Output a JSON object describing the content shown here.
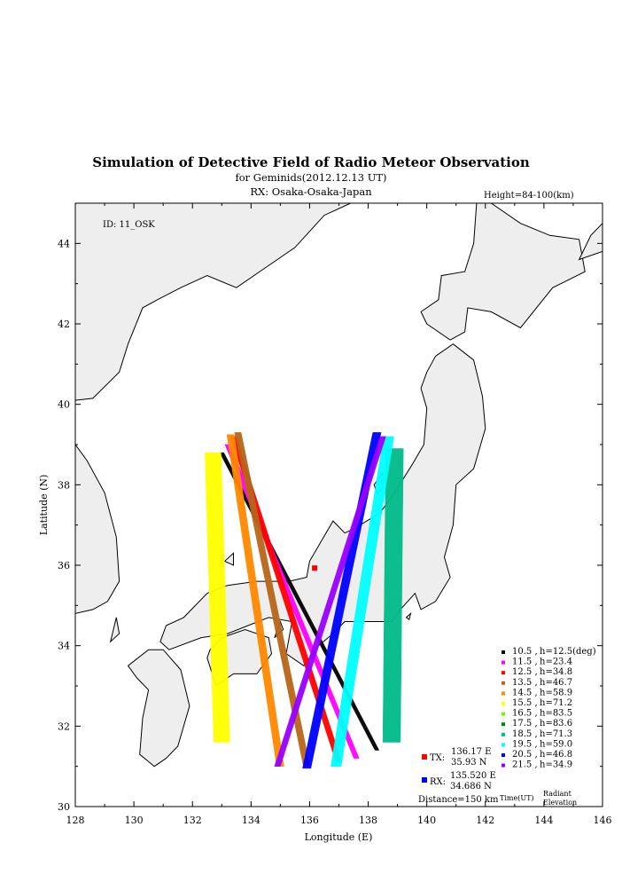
{
  "header": {
    "title": "Simulation of Detective Field of Radio Meteor Observation",
    "subtitle1": "for Geminids(2012.12.13 UT)",
    "subtitle2": "RX: Osaka-Osaka-Japan",
    "height": "Height=84-100(km)"
  },
  "map": {
    "id_label": "ID: 11_OSK",
    "xlabel": "Longitude (E)",
    "ylabel": "Latitude (N)",
    "xlim": [
      128,
      146
    ],
    "ylim": [
      30,
      45
    ],
    "xticks": [
      "128",
      "130",
      "132",
      "134",
      "136",
      "138",
      "140",
      "142",
      "144",
      "146"
    ],
    "yticks": [
      "30",
      "32",
      "34",
      "36",
      "38",
      "40",
      "42",
      "44"
    ],
    "land_color": "#eeeeee"
  },
  "stations": {
    "tx": {
      "label": "TX:",
      "lon_text": "136.17 E",
      "lat_text": "35.93 N",
      "lon": 136.17,
      "lat": 35.93,
      "color": "#ff0000"
    },
    "rx": {
      "label": "RX:",
      "lon_text": "135.520 E",
      "lat_text": "34.686 N",
      "lon": 135.52,
      "lat": 34.686,
      "color": "#0000ff"
    },
    "distance": "Distance=150 km"
  },
  "legend": {
    "footer_time": "Time(UT)",
    "footer_radiant": "Radiant",
    "footer_elevation": "Elevation",
    "entries": [
      {
        "time": "10.5 ,",
        "value": "h=12.5(deg)",
        "color": "#000000"
      },
      {
        "time": "11.5 ,",
        "value": "h=23.4",
        "color": "#ff00ff"
      },
      {
        "time": "12.5 ,",
        "value": "h=34.8",
        "color": "#ff0000"
      },
      {
        "time": "13.5 ,",
        "value": "h=46.7",
        "color": "#b8651a"
      },
      {
        "time": "14.5 ,",
        "value": "h=58.9",
        "color": "#ff8800"
      },
      {
        "time": "15.5 ,",
        "value": "h=71.2",
        "color": "#ffff00"
      },
      {
        "time": "16.5 ,",
        "value": "h=83.5",
        "color": "#88ee00"
      },
      {
        "time": "17.5 ,",
        "value": "h=83.6",
        "color": "#008800"
      },
      {
        "time": "18.5 ,",
        "value": "h=71.3",
        "color": "#00bb88"
      },
      {
        "time": "19.5 ,",
        "value": "h=59.0",
        "color": "#00ffff"
      },
      {
        "time": "20.5 ,",
        "value": "h=46.8",
        "color": "#0000ff"
      },
      {
        "time": "21.5 ,",
        "value": "h=34.9",
        "color": "#9900ff"
      }
    ]
  },
  "bands": [
    {
      "time": "10.5",
      "color": "#000000",
      "width": 0.14,
      "p1": [
        133.0,
        38.8
      ],
      "p2": [
        138.3,
        31.4
      ]
    },
    {
      "time": "11.5",
      "color": "#ff00ff",
      "width": 0.18,
      "p1": [
        133.2,
        39.0
      ],
      "p2": [
        137.6,
        31.2
      ]
    },
    {
      "time": "12.5",
      "color": "#ff0000",
      "width": 0.2,
      "p1": [
        133.4,
        39.2
      ],
      "p2": [
        137.0,
        31.1
      ]
    },
    {
      "time": "13.5",
      "color": "#b8651a",
      "width": 0.22,
      "p1": [
        133.55,
        39.3
      ],
      "p2": [
        135.9,
        31.0
      ]
    },
    {
      "time": "14.5",
      "color": "#ff8800",
      "width": 0.25,
      "p1": [
        133.3,
        39.25
      ],
      "p2": [
        135.0,
        31.0
      ]
    },
    {
      "time": "15.5",
      "color": "#ffff00",
      "width": 0.55,
      "p1": [
        132.7,
        38.8
      ],
      "p2": [
        133.0,
        31.6
      ]
    },
    {
      "time": "18.5",
      "color": "#00bb88",
      "width": 0.6,
      "p1": [
        138.9,
        38.9
      ],
      "p2": [
        138.8,
        31.6
      ]
    },
    {
      "time": "19.5",
      "color": "#00ffff",
      "width": 0.35,
      "p1": [
        138.7,
        39.2
      ],
      "p2": [
        136.9,
        31.0
      ]
    },
    {
      "time": "20.5",
      "color": "#0000ff",
      "width": 0.28,
      "p1": [
        138.3,
        39.3
      ],
      "p2": [
        135.9,
        30.95
      ]
    },
    {
      "time": "21.5",
      "color": "#9900ff",
      "width": 0.2,
      "p1": [
        138.5,
        39.2
      ],
      "p2": [
        134.9,
        31.0
      ]
    }
  ]
}
